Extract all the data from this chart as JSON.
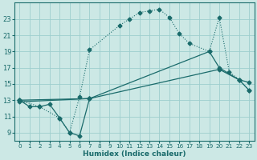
{
  "xlabel": "Humidex (Indice chaleur)",
  "xlim": [
    -0.5,
    23.5
  ],
  "ylim": [
    8.0,
    25.0
  ],
  "yticks": [
    9,
    11,
    13,
    15,
    17,
    19,
    21,
    23
  ],
  "xticks": [
    0,
    1,
    2,
    3,
    4,
    5,
    6,
    7,
    8,
    9,
    10,
    11,
    12,
    13,
    14,
    15,
    16,
    17,
    18,
    19,
    20,
    21,
    22,
    23
  ],
  "bg_color": "#cce8e5",
  "grid_color": "#9ecece",
  "line_color": "#1a6b6b",
  "curve_x": [
    0,
    2,
    4,
    5,
    6,
    7,
    10,
    11,
    12,
    13,
    14,
    15,
    16,
    17,
    19,
    20,
    21,
    22,
    23
  ],
  "curve_y": [
    13.0,
    12.2,
    10.8,
    9.0,
    13.4,
    19.2,
    22.2,
    23.0,
    23.8,
    24.0,
    24.2,
    23.2,
    21.2,
    20.0,
    19.0,
    23.2,
    16.5,
    15.5,
    14.2
  ],
  "zigzag_x": [
    0,
    1,
    2,
    3,
    4,
    5,
    6,
    7
  ],
  "zigzag_y": [
    13.0,
    12.2,
    12.2,
    12.5,
    10.8,
    9.0,
    8.6,
    13.2
  ],
  "line_upper_x": [
    0,
    7,
    19,
    20,
    22,
    23
  ],
  "line_upper_y": [
    13.0,
    13.2,
    19.0,
    17.0,
    15.5,
    15.2
  ],
  "line_lower_x": [
    0,
    7,
    20,
    22,
    23
  ],
  "line_lower_y": [
    12.8,
    13.2,
    16.8,
    15.5,
    14.2
  ]
}
